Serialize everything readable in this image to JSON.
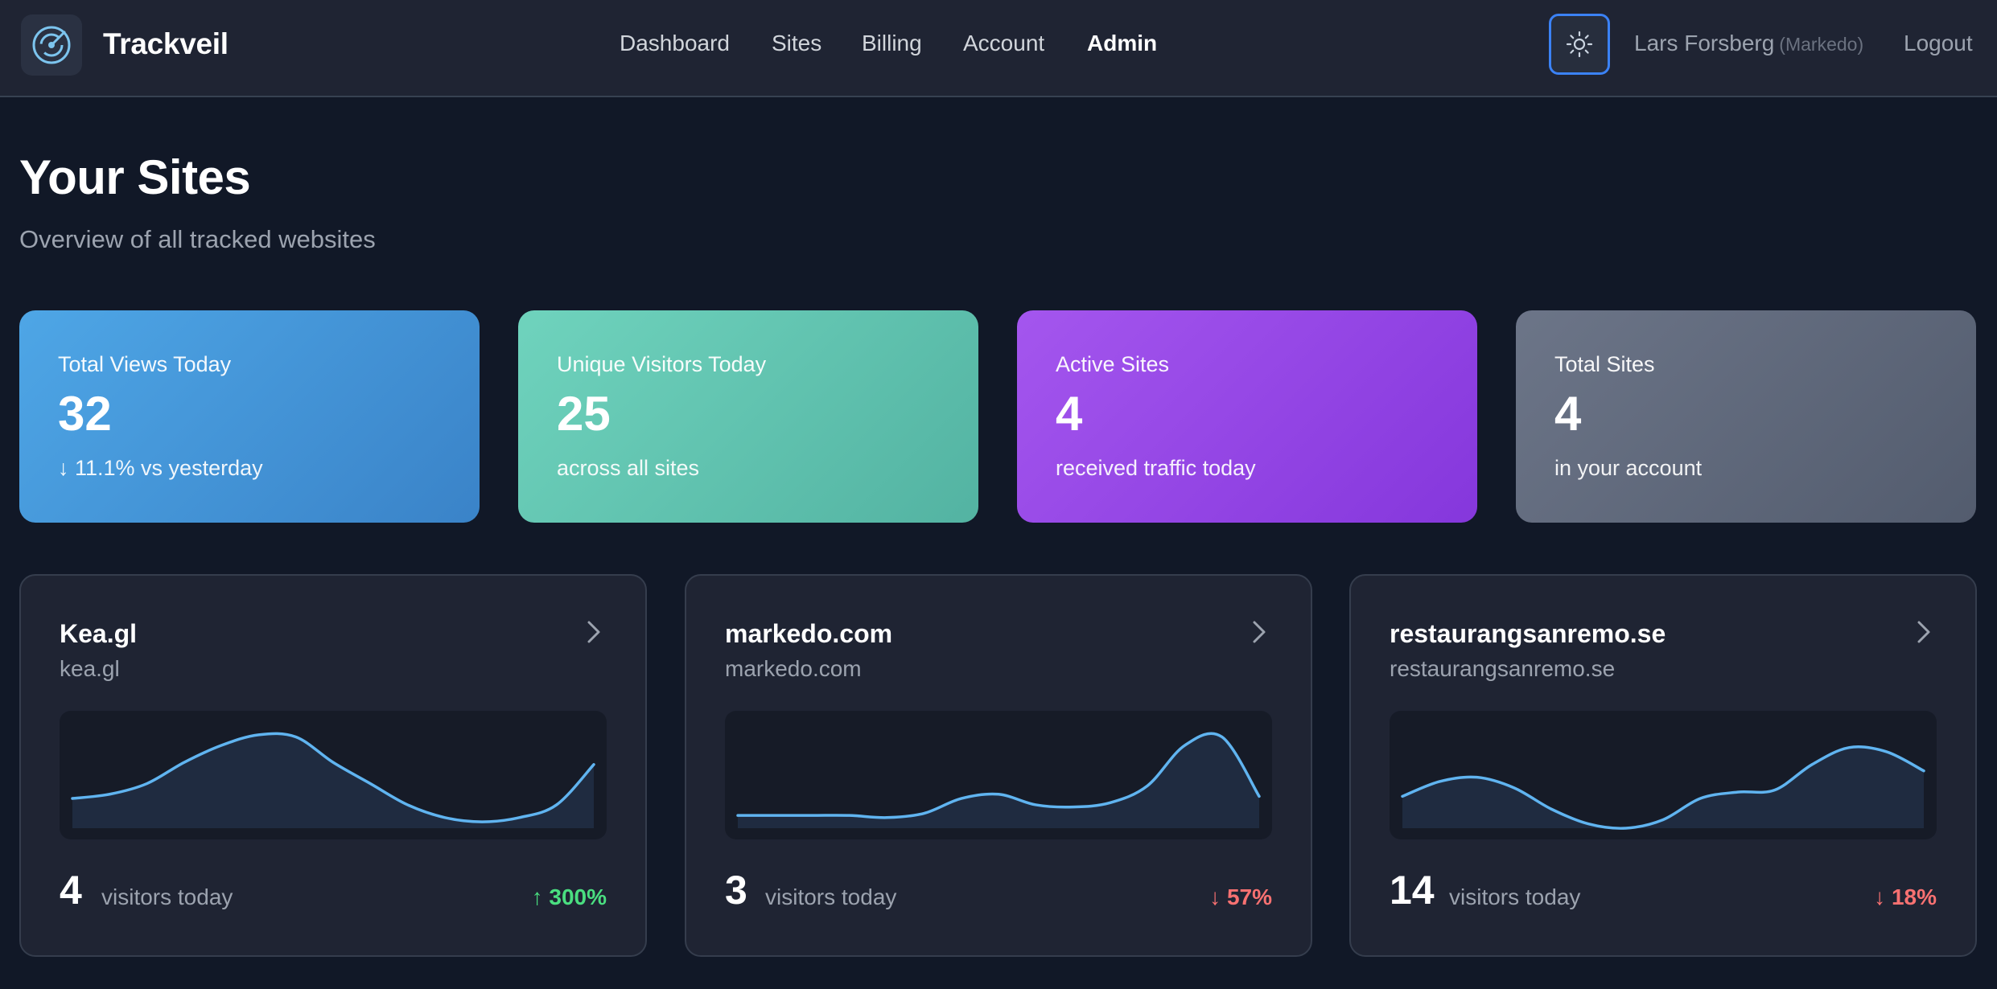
{
  "app": {
    "brand": "Trackveil"
  },
  "nav": {
    "links": [
      {
        "label": "Dashboard"
      },
      {
        "label": "Sites"
      },
      {
        "label": "Billing"
      },
      {
        "label": "Account"
      },
      {
        "label": "Admin"
      }
    ],
    "user_name": "Lars Forsberg",
    "user_org": "(Markedo)",
    "logout": "Logout"
  },
  "page": {
    "title": "Your Sites",
    "subtitle": "Overview of all tracked websites"
  },
  "stats": [
    {
      "label": "Total Views Today",
      "value": "32",
      "sub": "↓ 11.1% vs yesterday"
    },
    {
      "label": "Unique Visitors Today",
      "value": "25",
      "sub": "across all sites"
    },
    {
      "label": "Active Sites",
      "value": "4",
      "sub": "received traffic today"
    },
    {
      "label": "Total Sites",
      "value": "4",
      "sub": "in your account"
    }
  ],
  "sites": [
    {
      "name": "Kea.gl",
      "domain": "kea.gl",
      "visitors": "4",
      "visitors_label": "visitors today",
      "change": "↑ 300%",
      "trend": "up",
      "sparkline": [
        0.28,
        0.32,
        0.42,
        0.62,
        0.78,
        0.88,
        0.86,
        0.62,
        0.42,
        0.22,
        0.1,
        0.06,
        0.1,
        0.22,
        0.6
      ]
    },
    {
      "name": "markedo.com",
      "domain": "markedo.com",
      "visitors": "3",
      "visitors_label": "visitors today",
      "change": "↓ 57%",
      "trend": "down",
      "sparkline": [
        0.12,
        0.12,
        0.12,
        0.12,
        0.1,
        0.14,
        0.28,
        0.32,
        0.22,
        0.2,
        0.24,
        0.4,
        0.78,
        0.86,
        0.3
      ]
    },
    {
      "name": "restaurangsanremo.se",
      "domain": "restaurangsanremo.se",
      "visitors": "14",
      "visitors_label": "visitors today",
      "change": "↓ 18%",
      "trend": "down",
      "sparkline": [
        0.3,
        0.44,
        0.48,
        0.38,
        0.18,
        0.04,
        0.0,
        0.08,
        0.28,
        0.34,
        0.36,
        0.6,
        0.76,
        0.72,
        0.54
      ]
    }
  ],
  "colors": {
    "sparkline_stroke": "#60b4f0",
    "sparkline_fill": "#1f2b40",
    "up": "#4ade80",
    "down": "#f87171"
  }
}
